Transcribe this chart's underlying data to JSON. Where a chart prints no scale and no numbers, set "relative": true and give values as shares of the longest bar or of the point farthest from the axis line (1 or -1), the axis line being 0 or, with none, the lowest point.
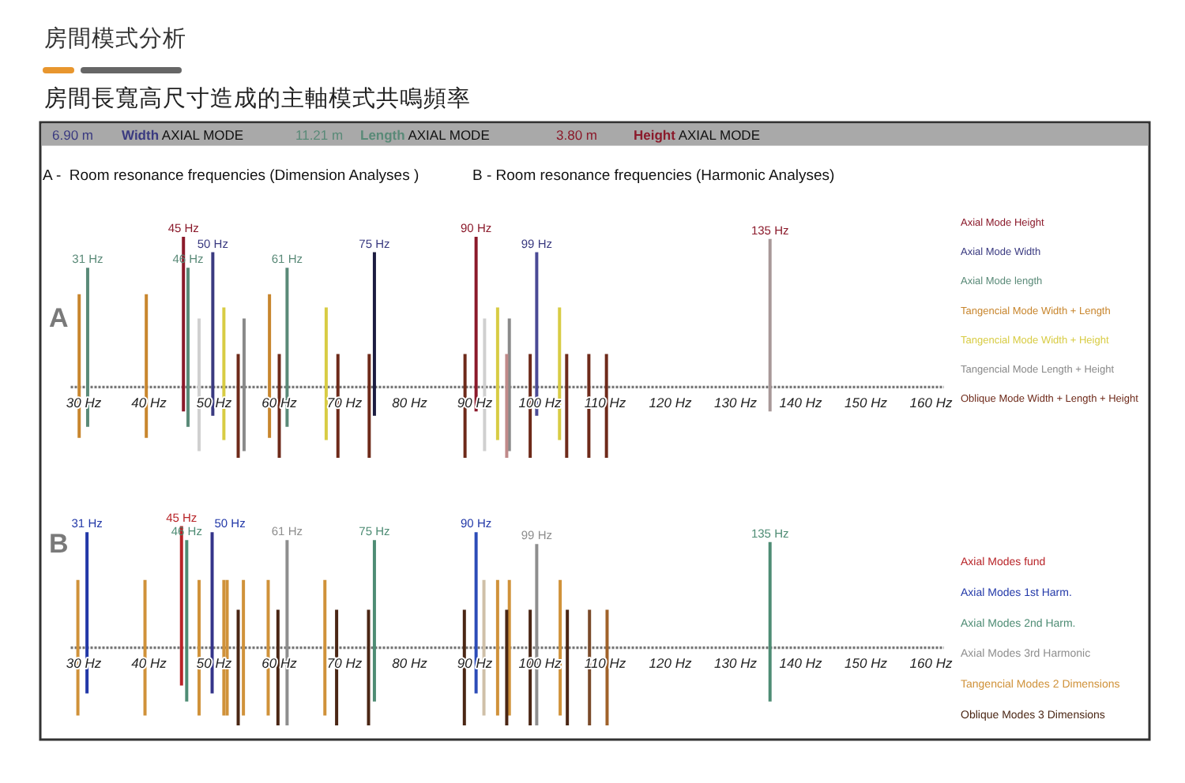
{
  "chart_data": [
    {
      "type": "line",
      "title": "房間模式分析",
      "subtitle": "房間長寬高尺寸造成的主軸模式共鳴頻率",
      "relative": true,
      "xlim": [
        28,
        162
      ],
      "xticks": [
        {
          "value": 30,
          "label": "30 Hz"
        },
        {
          "value": 40,
          "label": "40 Hz"
        },
        {
          "value": 50,
          "label": "50 Hz"
        },
        {
          "value": 60,
          "label": "60 Hz"
        },
        {
          "value": 70,
          "label": "70 Hz"
        },
        {
          "value": 80,
          "label": "80 Hz"
        },
        {
          "value": 90,
          "label": "90 Hz"
        },
        {
          "value": 100,
          "label": "100 Hz"
        },
        {
          "value": 110,
          "label": "110 Hz"
        },
        {
          "value": 120,
          "label": "120 Hz"
        },
        {
          "value": 130,
          "label": "130 Hz"
        },
        {
          "value": 140,
          "label": "140 Hz"
        },
        {
          "value": 150,
          "label": "150 Hz"
        },
        {
          "value": 160,
          "label": "160 Hz"
        }
      ],
      "ref_lines": [
        {
          "axis": "y",
          "value": 0.32,
          "color": "#777777",
          "line_style": "dotted"
        }
      ],
      "series": [
        {
          "name": "Axial Mode Height",
          "color": "#8b1a2b",
          "x": [
            45.3,
            45.3
          ],
          "values": [
            0.21,
            1.0
          ]
        },
        {
          "color": "#8b1a2b",
          "x": [
            90.2,
            90.2
          ],
          "values": [
            0.21,
            1.0
          ]
        },
        {
          "color": "#a89898",
          "x": [
            135.3,
            135.3
          ],
          "values": [
            0.21,
            0.99
          ]
        },
        {
          "name": "Axial Mode Width",
          "color": "#3a3a80",
          "x": [
            49.8,
            49.8
          ],
          "values": [
            0.19,
            0.93
          ]
        },
        {
          "color": "#1c1c40",
          "x": [
            74.6,
            74.6
          ],
          "values": [
            0.19,
            0.93
          ]
        },
        {
          "color": "#4a4a96",
          "x": [
            99.5,
            99.5
          ],
          "values": [
            0.19,
            0.93
          ]
        },
        {
          "name": "Axial Mode length",
          "color": "#5a8a78",
          "x": [
            30.6,
            30.6
          ],
          "values": [
            0.14,
            0.86
          ]
        },
        {
          "color": "#5a8a78",
          "x": [
            46.0,
            46.0
          ],
          "values": [
            0.14,
            0.86
          ]
        },
        {
          "color": "#5a8a78",
          "x": [
            61.2,
            61.2
          ],
          "values": [
            0.14,
            0.86
          ]
        },
        {
          "name": "Tangencial Mode Width + Length",
          "color": "#c8862e",
          "x": [
            29.3,
            29.3
          ],
          "values": [
            0.09,
            0.74
          ]
        },
        {
          "color": "#c8862e",
          "x": [
            39.6,
            39.6
          ],
          "values": [
            0.09,
            0.74
          ]
        },
        {
          "color": "#c8862e",
          "x": [
            58.5,
            58.5
          ],
          "values": [
            0.09,
            0.74
          ]
        },
        {
          "name": "Tangencial Mode Width + Height",
          "color": "#d8cc44",
          "x": [
            51.5,
            51.5
          ],
          "values": [
            0.08,
            0.68
          ]
        },
        {
          "color": "#d8cc44",
          "x": [
            67.2,
            67.2
          ],
          "values": [
            0.08,
            0.68
          ]
        },
        {
          "color": "#d8cc44",
          "x": [
            93.5,
            93.5
          ],
          "values": [
            0.08,
            0.68
          ]
        },
        {
          "color": "#d8cc44",
          "x": [
            103.0,
            103.0
          ],
          "values": [
            0.08,
            0.68
          ]
        },
        {
          "name": "Tangencial Mode Length + Height",
          "color": "#8a8a8a",
          "x": [
            54.6,
            54.6
          ],
          "values": [
            0.03,
            0.63
          ]
        },
        {
          "color": "#d0d0d0",
          "x": [
            47.7,
            47.7
          ],
          "values": [
            0.03,
            0.63
          ]
        },
        {
          "color": "#d0d0d0",
          "x": [
            91.5,
            91.5
          ],
          "values": [
            0.03,
            0.63
          ]
        },
        {
          "color": "#8a8a8a",
          "x": [
            95.3,
            95.3
          ],
          "values": [
            0.03,
            0.63
          ]
        },
        {
          "name": "Oblique Mode Width + Length + Height",
          "color": "#6e2a1a",
          "x": [
            53.7,
            53.7
          ],
          "values": [
            0,
            0.47
          ]
        },
        {
          "color": "#6e2a1a",
          "x": [
            60.0,
            60.0
          ],
          "values": [
            0,
            0.47
          ]
        },
        {
          "color": "#6e2a1a",
          "x": [
            69.0,
            69.0
          ],
          "values": [
            0,
            0.47
          ]
        },
        {
          "color": "#6e2a1a",
          "x": [
            73.8,
            73.8
          ],
          "values": [
            0,
            0.47
          ]
        },
        {
          "color": "#6e2a1a",
          "x": [
            88.5,
            88.5
          ],
          "values": [
            0,
            0.47
          ]
        },
        {
          "color": "#c08a8a",
          "x": [
            94.9,
            94.9
          ],
          "values": [
            0,
            0.47
          ]
        },
        {
          "color": "#6e2a1a",
          "x": [
            98.5,
            98.5
          ],
          "values": [
            0,
            0.47
          ]
        },
        {
          "color": "#6e2a1a",
          "x": [
            104.1,
            104.1
          ],
          "values": [
            0,
            0.47
          ]
        },
        {
          "color": "#6e2a1a",
          "x": [
            107.5,
            107.5
          ],
          "values": [
            0,
            0.47
          ]
        },
        {
          "color": "#6e2a1a",
          "x": [
            110.2,
            110.2
          ],
          "values": [
            0,
            0.47
          ]
        }
      ],
      "annotations": [
        "6.90 m",
        "Width AXIAL MODE",
        "11.21 m",
        "Length AXIAL MODE",
        "3.80 m",
        "Height AXIAL MODE",
        "A -  Room resonance frequencies (Dimension Analyses )",
        "B - Room resonance frequencies (Harmonic Analyses)",
        "A",
        {
          "text": "31 Hz",
          "x": 30.6,
          "y": 0.86
        },
        {
          "text": "45 Hz",
          "x": 45.3,
          "y": 1.0
        },
        {
          "text": "46 Hz",
          "x": 46.0,
          "y": 0.86
        },
        {
          "text": "50 Hz",
          "x": 49.8,
          "y": 0.93
        },
        {
          "text": "61 Hz",
          "x": 61.2,
          "y": 0.86
        },
        {
          "text": "75 Hz",
          "x": 74.6,
          "y": 0.93
        },
        {
          "text": "90 Hz",
          "x": 90.2,
          "y": 1.0
        },
        {
          "text": "99 Hz",
          "x": 99.5,
          "y": 0.93
        },
        {
          "text": "135 Hz",
          "x": 135.3,
          "y": 0.99
        }
      ]
    },
    {
      "type": "line",
      "relative": true,
      "xlim": [
        28,
        162
      ],
      "xticks": [
        {
          "value": 30,
          "label": "30 Hz"
        },
        {
          "value": 40,
          "label": "40 Hz"
        },
        {
          "value": 50,
          "label": "50 Hz"
        },
        {
          "value": 60,
          "label": "60 Hz"
        },
        {
          "value": 70,
          "label": "70 Hz"
        },
        {
          "value": 80,
          "label": "80 Hz"
        },
        {
          "value": 90,
          "label": "90 Hz"
        },
        {
          "value": 100,
          "label": "100 Hz"
        },
        {
          "value": 110,
          "label": "110 Hz"
        },
        {
          "value": 120,
          "label": "120 Hz"
        },
        {
          "value": 130,
          "label": "130 Hz"
        },
        {
          "value": 140,
          "label": "140 Hz"
        },
        {
          "value": 150,
          "label": "150 Hz"
        },
        {
          "value": 160,
          "label": "160 Hz"
        }
      ],
      "ref_lines": [
        {
          "axis": "y",
          "value": 0.39,
          "color": "#777777",
          "line_style": "dotted"
        }
      ],
      "series": [
        {
          "name": "Axial Modes fund",
          "color": "#b82428",
          "x": [
            45.0,
            45.0
          ],
          "values": [
            0.2,
            1.0
          ]
        },
        {
          "name": "Axial Modes 1st Harm.",
          "color": "#2238a8",
          "x": [
            30.5,
            30.5
          ],
          "values": [
            0.16,
            0.97
          ]
        },
        {
          "color": "#34348a",
          "x": [
            49.7,
            49.7
          ],
          "values": [
            0.16,
            0.97
          ]
        },
        {
          "color": "#2c4cb8",
          "x": [
            90.2,
            90.2
          ],
          "values": [
            0.16,
            0.97
          ]
        },
        {
          "name": "Axial Modes 2nd Harm.",
          "color": "#4e8c74",
          "x": [
            45.8,
            45.8
          ],
          "values": [
            0.12,
            0.93
          ]
        },
        {
          "color": "#4e8c74",
          "x": [
            74.6,
            74.6
          ],
          "values": [
            0.12,
            0.93
          ]
        },
        {
          "color": "#4e8c74",
          "x": [
            135.3,
            135.3
          ],
          "values": [
            0.12,
            0.92
          ]
        },
        {
          "name": "Axial Modes 3rd Harmonic",
          "color": "#8e8e8e",
          "x": [
            61.2,
            61.2
          ],
          "values": [
            0,
            0.93
          ]
        },
        {
          "color": "#8e8e8e",
          "x": [
            99.5,
            99.5
          ],
          "values": [
            0,
            0.91
          ]
        },
        {
          "name": "Tangencial Modes 2 Dimensions",
          "color": "#d0923a",
          "x": [
            29.1,
            29.1
          ],
          "values": [
            0.05,
            0.73
          ]
        },
        {
          "color": "#d0923a",
          "x": [
            39.4,
            39.4
          ],
          "values": [
            0.05,
            0.73
          ]
        },
        {
          "color": "#d0923a",
          "x": [
            47.7,
            47.7
          ],
          "values": [
            0.05,
            0.73
          ]
        },
        {
          "color": "#d0923a",
          "x": [
            51.5,
            51.5
          ],
          "values": [
            0.05,
            0.73
          ]
        },
        {
          "color": "#d0923a",
          "x": [
            52.0,
            52.0
          ],
          "values": [
            0.05,
            0.73
          ]
        },
        {
          "color": "#d0923a",
          "x": [
            54.5,
            54.5
          ],
          "values": [
            0.05,
            0.73
          ]
        },
        {
          "color": "#d0923a",
          "x": [
            58.3,
            58.3
          ],
          "values": [
            0.05,
            0.73
          ]
        },
        {
          "color": "#d0923a",
          "x": [
            67.0,
            67.0
          ],
          "values": [
            0.05,
            0.73
          ]
        },
        {
          "color": "#cfc0a8",
          "x": [
            91.4,
            91.4
          ],
          "values": [
            0.05,
            0.73
          ]
        },
        {
          "color": "#d0923a",
          "x": [
            93.5,
            93.5
          ],
          "values": [
            0.05,
            0.73
          ]
        },
        {
          "color": "#d0923a",
          "x": [
            95.3,
            95.3
          ],
          "values": [
            0.05,
            0.73
          ]
        },
        {
          "color": "#d0923a",
          "x": [
            103.1,
            103.1
          ],
          "values": [
            0.05,
            0.73
          ]
        },
        {
          "name": "Oblique Modes 3 Dimensions",
          "color": "#4a2614",
          "x": [
            53.7,
            53.7
          ],
          "values": [
            0,
            0.58
          ]
        },
        {
          "color": "#4a2614",
          "x": [
            59.8,
            59.8
          ],
          "values": [
            0,
            0.58
          ]
        },
        {
          "color": "#4a2614",
          "x": [
            68.8,
            68.8
          ],
          "values": [
            0,
            0.58
          ]
        },
        {
          "color": "#4a2614",
          "x": [
            73.7,
            73.7
          ],
          "values": [
            0,
            0.58
          ]
        },
        {
          "color": "#4a2614",
          "x": [
            88.4,
            88.4
          ],
          "values": [
            0,
            0.58
          ]
        },
        {
          "color": "#4a2614",
          "x": [
            94.9,
            94.9
          ],
          "values": [
            0,
            0.58
          ]
        },
        {
          "color": "#4a2614",
          "x": [
            98.5,
            98.5
          ],
          "values": [
            0,
            0.58
          ]
        },
        {
          "color": "#4a2614",
          "x": [
            104.2,
            104.2
          ],
          "values": [
            0,
            0.58
          ]
        },
        {
          "color": "#7a4a2a",
          "x": [
            107.6,
            107.6
          ],
          "values": [
            0,
            0.58
          ]
        },
        {
          "color": "#a0622a",
          "x": [
            110.3,
            110.3
          ],
          "values": [
            0,
            0.58
          ]
        }
      ],
      "annotations": [
        "B",
        {
          "text": "31 Hz",
          "x": 30.5,
          "y": 0.97
        },
        {
          "text": "45 Hz",
          "x": 45.0,
          "y": 1.0
        },
        {
          "text": "46 Hz",
          "x": 45.8,
          "y": 0.93
        },
        {
          "text": "50 Hz",
          "x": 49.7,
          "y": 0.97
        },
        {
          "text": "61 Hz",
          "x": 61.2,
          "y": 0.93
        },
        {
          "text": "75 Hz",
          "x": 74.6,
          "y": 0.93
        },
        {
          "text": "90 Hz",
          "x": 90.2,
          "y": 0.97
        },
        {
          "text": "99 Hz",
          "x": 99.5,
          "y": 0.91
        },
        {
          "text": "135 Hz",
          "x": 135.3,
          "y": 0.92
        }
      ]
    }
  ]
}
